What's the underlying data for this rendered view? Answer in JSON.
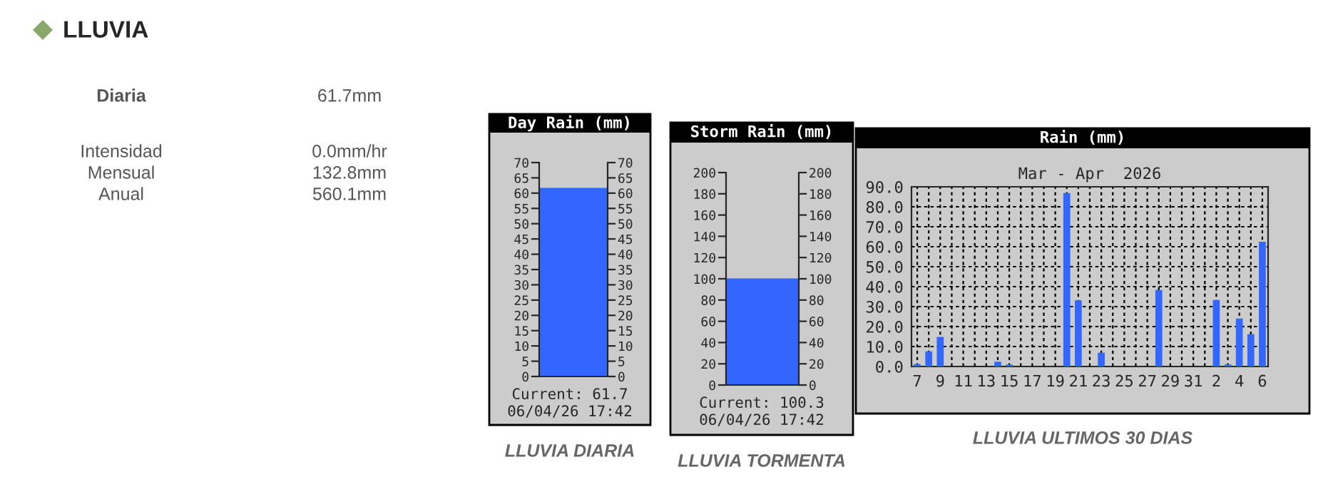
{
  "chart_data": [
    {
      "type": "other",
      "title": "LLUVIA",
      "annotations": [
        "Diaria",
        "61.7mm",
        "Intensidad",
        "0.0mm/hr",
        "Mensual",
        "132.8mm",
        "Anual",
        "560.1mm"
      ]
    },
    {
      "type": "bar",
      "title": "Day Rain (mm)",
      "categories": [
        null
      ],
      "values": [
        61.7
      ],
      "color": "#3366ff",
      "ylim": [
        0,
        70
      ],
      "yticks": [
        0,
        5,
        10,
        15,
        20,
        25,
        30,
        35,
        40,
        45,
        50,
        55,
        60,
        65,
        70
      ],
      "y2lim": [
        0,
        70
      ],
      "y2ticks": [
        0,
        5,
        10,
        15,
        20,
        25,
        30,
        35,
        40,
        45,
        50,
        55,
        60,
        65,
        70
      ],
      "annotations": [
        "Current: 61.7",
        "06/04/26 17:42",
        "LLUVIA DIARIA"
      ]
    },
    {
      "type": "bar",
      "title": "Storm Rain (mm)",
      "categories": [
        null
      ],
      "values": [
        100.3
      ],
      "color": "#3366ff",
      "ylim": [
        0,
        200
      ],
      "yticks": [
        0,
        20,
        40,
        60,
        80,
        100,
        120,
        140,
        160,
        180,
        200
      ],
      "y2lim": [
        0,
        200
      ],
      "y2ticks": [
        0,
        20,
        40,
        60,
        80,
        100,
        120,
        140,
        160,
        180,
        200
      ],
      "annotations": [
        "Current: 100.3",
        "06/04/26 17:42",
        "LLUVIA TORMENTA"
      ]
    },
    {
      "type": "bar",
      "title": "Rain (mm)",
      "subtitle": "Mar - Apr  2026",
      "categories": [
        "7",
        null,
        "9",
        null,
        "11",
        null,
        "13",
        null,
        "15",
        null,
        "17",
        null,
        "19",
        null,
        "21",
        null,
        "23",
        null,
        "25",
        null,
        "27",
        null,
        "29",
        null,
        "31",
        null,
        "2",
        null,
        "4",
        null,
        "6"
      ],
      "values": [
        1.2,
        7.6,
        14.8,
        0,
        0,
        0,
        0,
        2.4,
        1.0,
        0,
        0,
        0,
        0,
        86.9,
        33.1,
        0,
        6.9,
        0,
        0,
        0,
        0,
        38.3,
        0,
        0,
        0,
        0,
        33.3,
        1.0,
        24.0,
        16.2,
        62.5
      ],
      "color": "#3366ff",
      "ylim": [
        0,
        90
      ],
      "yticks": [
        {
          "value": 0,
          "label": "0.0"
        },
        {
          "value": 10,
          "label": "10.0"
        },
        {
          "value": 20,
          "label": "20.0"
        },
        {
          "value": 30,
          "label": "30.0"
        },
        {
          "value": 40,
          "label": "40.0"
        },
        {
          "value": 50,
          "label": "50.0"
        },
        {
          "value": 60,
          "label": "60.0"
        },
        {
          "value": 70,
          "label": "70.0"
        },
        {
          "value": 80,
          "label": "80.0"
        },
        {
          "value": 90,
          "label": "90.0"
        }
      ],
      "grid": true,
      "annotations": [
        "LLUVIA ULTIMOS 30 DIAS"
      ]
    }
  ]
}
